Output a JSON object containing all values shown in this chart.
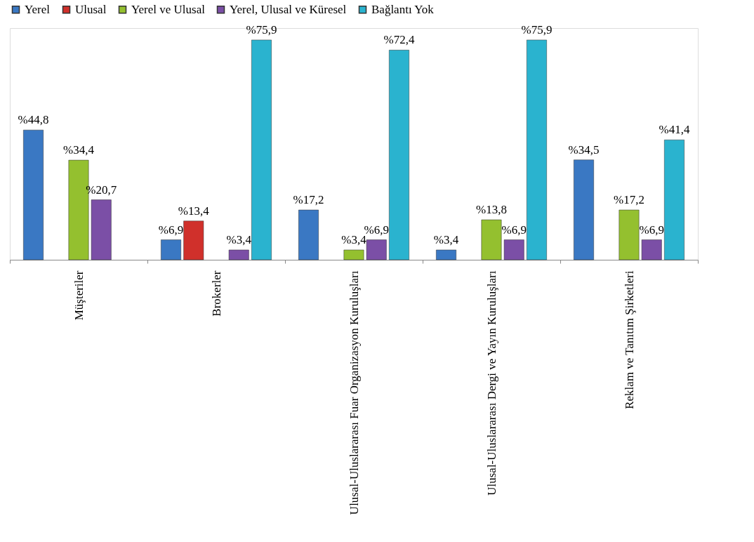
{
  "chart_data": {
    "type": "bar",
    "categories": [
      "Müşteriler",
      "Brokerler",
      "Ulusal-Uluslararası Fuar Organizasyon Kuruluşları",
      "Ulusal-Uluslararası Dergi ve Yayın Kuruluşları",
      "Reklam ve Tanıtım Şirketleri"
    ],
    "series": [
      {
        "name": "Yerel",
        "color": "#3a78c3",
        "values": [
          44.8,
          6.9,
          17.2,
          3.4,
          34.5
        ],
        "value_labels": [
          "%44,8",
          "%6,9",
          "%17,2",
          "%3,4",
          "%34,5"
        ]
      },
      {
        "name": "Ulusal",
        "color": "#d0302b",
        "values": [
          null,
          13.4,
          null,
          null,
          null
        ],
        "value_labels": [
          null,
          "%13,4",
          null,
          null,
          null
        ]
      },
      {
        "name": "Yerel ve Ulusal",
        "color": "#94c02f",
        "values": [
          34.4,
          null,
          3.4,
          13.8,
          17.2
        ],
        "value_labels": [
          "%34,4",
          null,
          "%3,4",
          "%13,8",
          "%17,2"
        ]
      },
      {
        "name": "Yerel, Ulusal ve Küresel",
        "color": "#7b4fa6",
        "values": [
          20.7,
          3.4,
          6.9,
          6.9,
          6.9
        ],
        "value_labels": [
          "%20,7",
          "%3,4",
          "%6,9",
          "%6,9",
          "%6,9"
        ]
      },
      {
        "name": "Bağlantı Yok",
        "color": "#2ab3cf",
        "values": [
          null,
          75.9,
          72.4,
          75.9,
          41.4
        ],
        "value_labels": [
          null,
          "%75,9",
          "%72,4",
          "%75,9",
          "%41,4"
        ]
      }
    ],
    "legend": "top",
    "grid": false
  }
}
